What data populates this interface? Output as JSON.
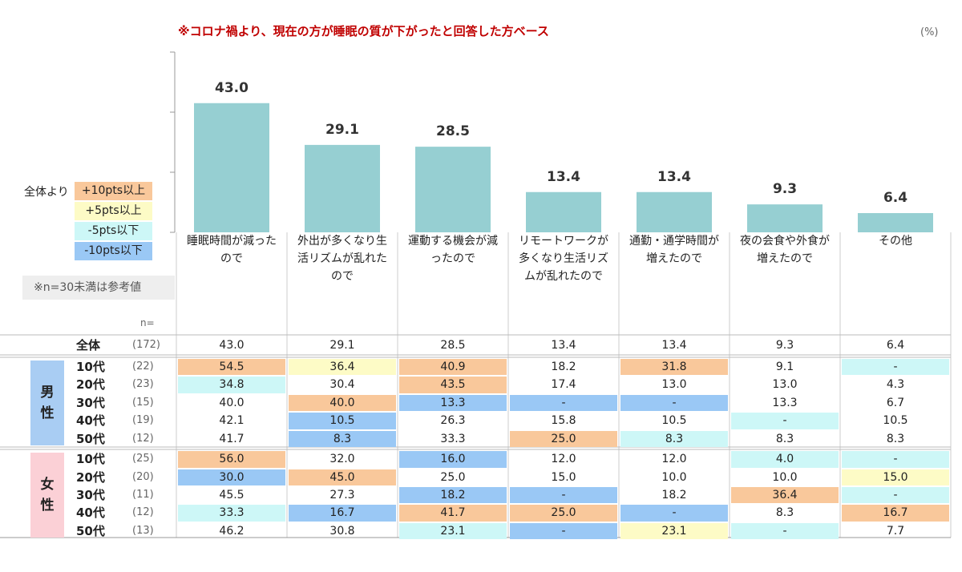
{
  "chart_data": {
    "type": "bar",
    "title": "※コロナ禍より、現在の方が睡眠の質が下がったと回答した方ベース",
    "unit": "(%)",
    "categories": [
      "睡眠時間が減ったので",
      "外出が多くなり生活リズムが乱れたので",
      "運動する機会が減ったので",
      "リモートワークが多くなり生活リズムが乱れたので",
      "通勤・通学時間が増えたので",
      "夜の会食や外食が増えたので",
      "その他"
    ],
    "values": [
      43.0,
      29.1,
      28.5,
      13.4,
      13.4,
      9.3,
      6.4
    ],
    "value_labels": [
      "43.0",
      "29.1",
      "28.5",
      "13.4",
      "13.4",
      "9.3",
      "6.4"
    ],
    "color": "#96cfd2",
    "ylim": [
      0,
      60
    ],
    "yticks": [
      0,
      20,
      40,
      60
    ]
  },
  "legend": {
    "title": "全体より",
    "items": [
      {
        "label": "+10pts以上",
        "color": "#f9c89b"
      },
      {
        "label": "+5pts以上",
        "color": "#fdfbc6"
      },
      {
        "label": "-5pts以下",
        "color": "#cdf7f7"
      },
      {
        "label": "-10pts以下",
        "color": "#9ac8f5"
      }
    ]
  },
  "note": "※n=30未満は参考値",
  "table": {
    "n_label": "n=",
    "total": {
      "label": "全体",
      "n": "(172)",
      "cells": [
        "43.0",
        "29.1",
        "28.5",
        "13.4",
        "13.4",
        "9.3",
        "6.4"
      ]
    },
    "groups": [
      {
        "name": "男性",
        "color": "#a9cdf3",
        "rows": [
          {
            "label": "10代",
            "n": "(22)",
            "cells": [
              "54.5",
              "36.4",
              "40.9",
              "18.2",
              "31.8",
              "9.1",
              "-"
            ],
            "colors": [
              "#f9c89b",
              "#fdfbc6",
              "#f9c89b",
              null,
              "#f9c89b",
              null,
              "#cdf7f7"
            ]
          },
          {
            "label": "20代",
            "n": "(23)",
            "cells": [
              "34.8",
              "30.4",
              "43.5",
              "17.4",
              "13.0",
              "13.0",
              "4.3"
            ],
            "colors": [
              "#cdf7f7",
              null,
              "#f9c89b",
              null,
              null,
              null,
              null
            ]
          },
          {
            "label": "30代",
            "n": "(15)",
            "cells": [
              "40.0",
              "40.0",
              "13.3",
              "-",
              "-",
              "13.3",
              "6.7"
            ],
            "colors": [
              null,
              "#f9c89b",
              "#9ac8f5",
              "#9ac8f5",
              "#9ac8f5",
              null,
              null
            ]
          },
          {
            "label": "40代",
            "n": "(19)",
            "cells": [
              "42.1",
              "10.5",
              "26.3",
              "15.8",
              "10.5",
              "-",
              "10.5"
            ],
            "colors": [
              null,
              "#9ac8f5",
              null,
              null,
              null,
              "#cdf7f7",
              null
            ]
          },
          {
            "label": "50代",
            "n": "(12)",
            "cells": [
              "41.7",
              "8.3",
              "33.3",
              "25.0",
              "8.3",
              "8.3",
              "8.3"
            ],
            "colors": [
              null,
              "#9ac8f5",
              null,
              "#f9c89b",
              "#cdf7f7",
              null,
              null
            ]
          }
        ]
      },
      {
        "name": "女性",
        "color": "#fbd0d6",
        "rows": [
          {
            "label": "10代",
            "n": "(25)",
            "cells": [
              "56.0",
              "32.0",
              "16.0",
              "12.0",
              "12.0",
              "4.0",
              "-"
            ],
            "colors": [
              "#f9c89b",
              null,
              "#9ac8f5",
              null,
              null,
              "#cdf7f7",
              "#cdf7f7"
            ]
          },
          {
            "label": "20代",
            "n": "(20)",
            "cells": [
              "30.0",
              "45.0",
              "25.0",
              "15.0",
              "10.0",
              "10.0",
              "15.0"
            ],
            "colors": [
              "#9ac8f5",
              "#f9c89b",
              null,
              null,
              null,
              null,
              "#fdfbc6"
            ]
          },
          {
            "label": "30代",
            "n": "(11)",
            "cells": [
              "45.5",
              "27.3",
              "18.2",
              "-",
              "18.2",
              "36.4",
              "-"
            ],
            "colors": [
              null,
              null,
              "#9ac8f5",
              "#9ac8f5",
              null,
              "#f9c89b",
              "#cdf7f7"
            ]
          },
          {
            "label": "40代",
            "n": "(12)",
            "cells": [
              "33.3",
              "16.7",
              "41.7",
              "25.0",
              "-",
              "8.3",
              "16.7"
            ],
            "colors": [
              "#cdf7f7",
              "#9ac8f5",
              "#f9c89b",
              "#f9c89b",
              "#9ac8f5",
              null,
              "#f9c89b"
            ]
          },
          {
            "label": "50代",
            "n": "(13)",
            "cells": [
              "46.2",
              "30.8",
              "23.1",
              "-",
              "23.1",
              "-",
              "7.7"
            ],
            "colors": [
              null,
              null,
              "#cdf7f7",
              "#9ac8f5",
              "#fdfbc6",
              "#cdf7f7",
              null
            ]
          }
        ]
      }
    ]
  }
}
